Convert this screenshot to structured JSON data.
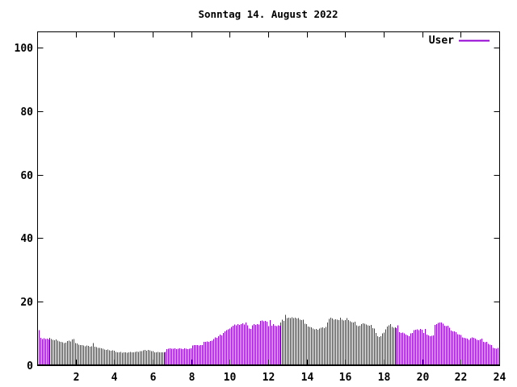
{
  "title": "Sonntag 14. August 2022",
  "legend": {
    "label": "User",
    "color": "#9400d3",
    "position": "top-right"
  },
  "colors": {
    "bar": "#9400d3",
    "axis": "#000000",
    "background": "#ffffff",
    "text": "#000000"
  },
  "chart_data": {
    "type": "bar",
    "title": "Sonntag 14. August 2022",
    "series_name": "User",
    "x_unit": "hour of day",
    "sample_interval_minutes": 5,
    "xlim": [
      0,
      24
    ],
    "ylim": [
      0,
      105
    ],
    "x_ticks": [
      2,
      4,
      6,
      8,
      10,
      12,
      14,
      16,
      18,
      20,
      22,
      24
    ],
    "y_ticks": [
      0,
      20,
      40,
      60,
      80,
      100
    ],
    "grid": false,
    "legend_position": "top-right",
    "values": [
      11.0,
      8.6,
      8.3,
      8.5,
      8.2,
      8.4,
      8.1,
      8.6,
      8.3,
      8.0,
      7.9,
      8.1,
      7.7,
      7.5,
      7.3,
      7.2,
      7.0,
      7.1,
      7.6,
      7.7,
      7.5,
      8.1,
      8.3,
      7.0,
      6.8,
      6.5,
      6.3,
      6.4,
      6.2,
      6.0,
      6.2,
      6.1,
      5.9,
      6.0,
      7.0,
      5.8,
      5.7,
      5.5,
      5.4,
      5.3,
      5.2,
      4.9,
      4.8,
      4.9,
      4.7,
      4.6,
      4.7,
      4.6,
      4.2,
      4.1,
      4.0,
      4.2,
      3.9,
      4.1,
      4.0,
      3.9,
      4.1,
      4.2,
      4.0,
      4.1,
      4.2,
      4.3,
      4.2,
      4.4,
      4.5,
      4.7,
      4.8,
      4.6,
      4.8,
      4.7,
      4.5,
      4.4,
      4.1,
      4.0,
      4.2,
      4.1,
      4.0,
      4.1,
      4.0,
      4.2,
      5.1,
      5.2,
      5.3,
      5.2,
      5.2,
      5.3,
      5.1,
      5.2,
      5.3,
      5.2,
      5.1,
      5.3,
      5.2,
      5.1,
      5.2,
      5.3,
      6.2,
      6.3,
      6.4,
      6.3,
      6.2,
      6.4,
      6.3,
      7.3,
      7.4,
      7.5,
      7.4,
      7.6,
      7.8,
      8.2,
      8.8,
      8.6,
      9.2,
      9.6,
      9.4,
      10.2,
      10.6,
      11.0,
      11.3,
      11.6,
      12.1,
      12.5,
      12.8,
      12.6,
      13.0,
      12.7,
      12.9,
      13.2,
      12.8,
      13.4,
      12.6,
      11.6,
      11.4,
      12.6,
      12.9,
      12.7,
      13.0,
      12.8,
      13.9,
      14.1,
      13.8,
      14.0,
      13.7,
      12.3,
      14.2,
      12.4,
      13.0,
      12.5,
      12.3,
      12.6,
      12.4,
      13.5,
      14.3,
      14.0,
      15.8,
      14.8,
      15.0,
      14.9,
      15.1,
      14.8,
      15.0,
      14.7,
      14.9,
      14.4,
      14.2,
      14.3,
      13.1,
      12.9,
      12.2,
      12.0,
      11.9,
      11.5,
      11.3,
      11.4,
      11.2,
      11.6,
      11.8,
      11.9,
      11.7,
      12.0,
      13.4,
      14.6,
      15.0,
      14.7,
      14.4,
      14.5,
      14.3,
      14.2,
      15.0,
      14.3,
      14.1,
      14.2,
      14.8,
      14.2,
      13.8,
      13.6,
      13.5,
      13.7,
      12.6,
      12.3,
      12.4,
      13.0,
      13.2,
      13.1,
      12.8,
      12.6,
      12.5,
      12.7,
      11.7,
      11.5,
      10.1,
      9.2,
      8.9,
      9.1,
      10.0,
      10.3,
      11.3,
      12.2,
      12.6,
      13.0,
      12.0,
      11.8,
      11.9,
      11.7,
      12.6,
      10.4,
      10.2,
      10.3,
      10.0,
      9.7,
      9.4,
      9.2,
      10.0,
      10.2,
      11.0,
      11.2,
      11.3,
      11.1,
      11.4,
      11.2,
      10.1,
      11.4,
      9.6,
      9.4,
      9.2,
      9.3,
      9.4,
      12.7,
      12.9,
      13.3,
      13.5,
      13.4,
      13.1,
      12.5,
      12.3,
      12.4,
      11.8,
      10.9,
      10.7,
      10.6,
      10.4,
      9.8,
      9.6,
      9.5,
      8.8,
      8.6,
      8.5,
      8.4,
      8.0,
      8.5,
      8.7,
      8.6,
      8.4,
      8.0,
      7.9,
      8.1,
      8.4,
      7.4,
      7.2,
      7.3,
      6.7,
      6.5,
      6.4,
      5.5,
      5.3,
      5.2,
      5.4,
      5.3
    ]
  }
}
